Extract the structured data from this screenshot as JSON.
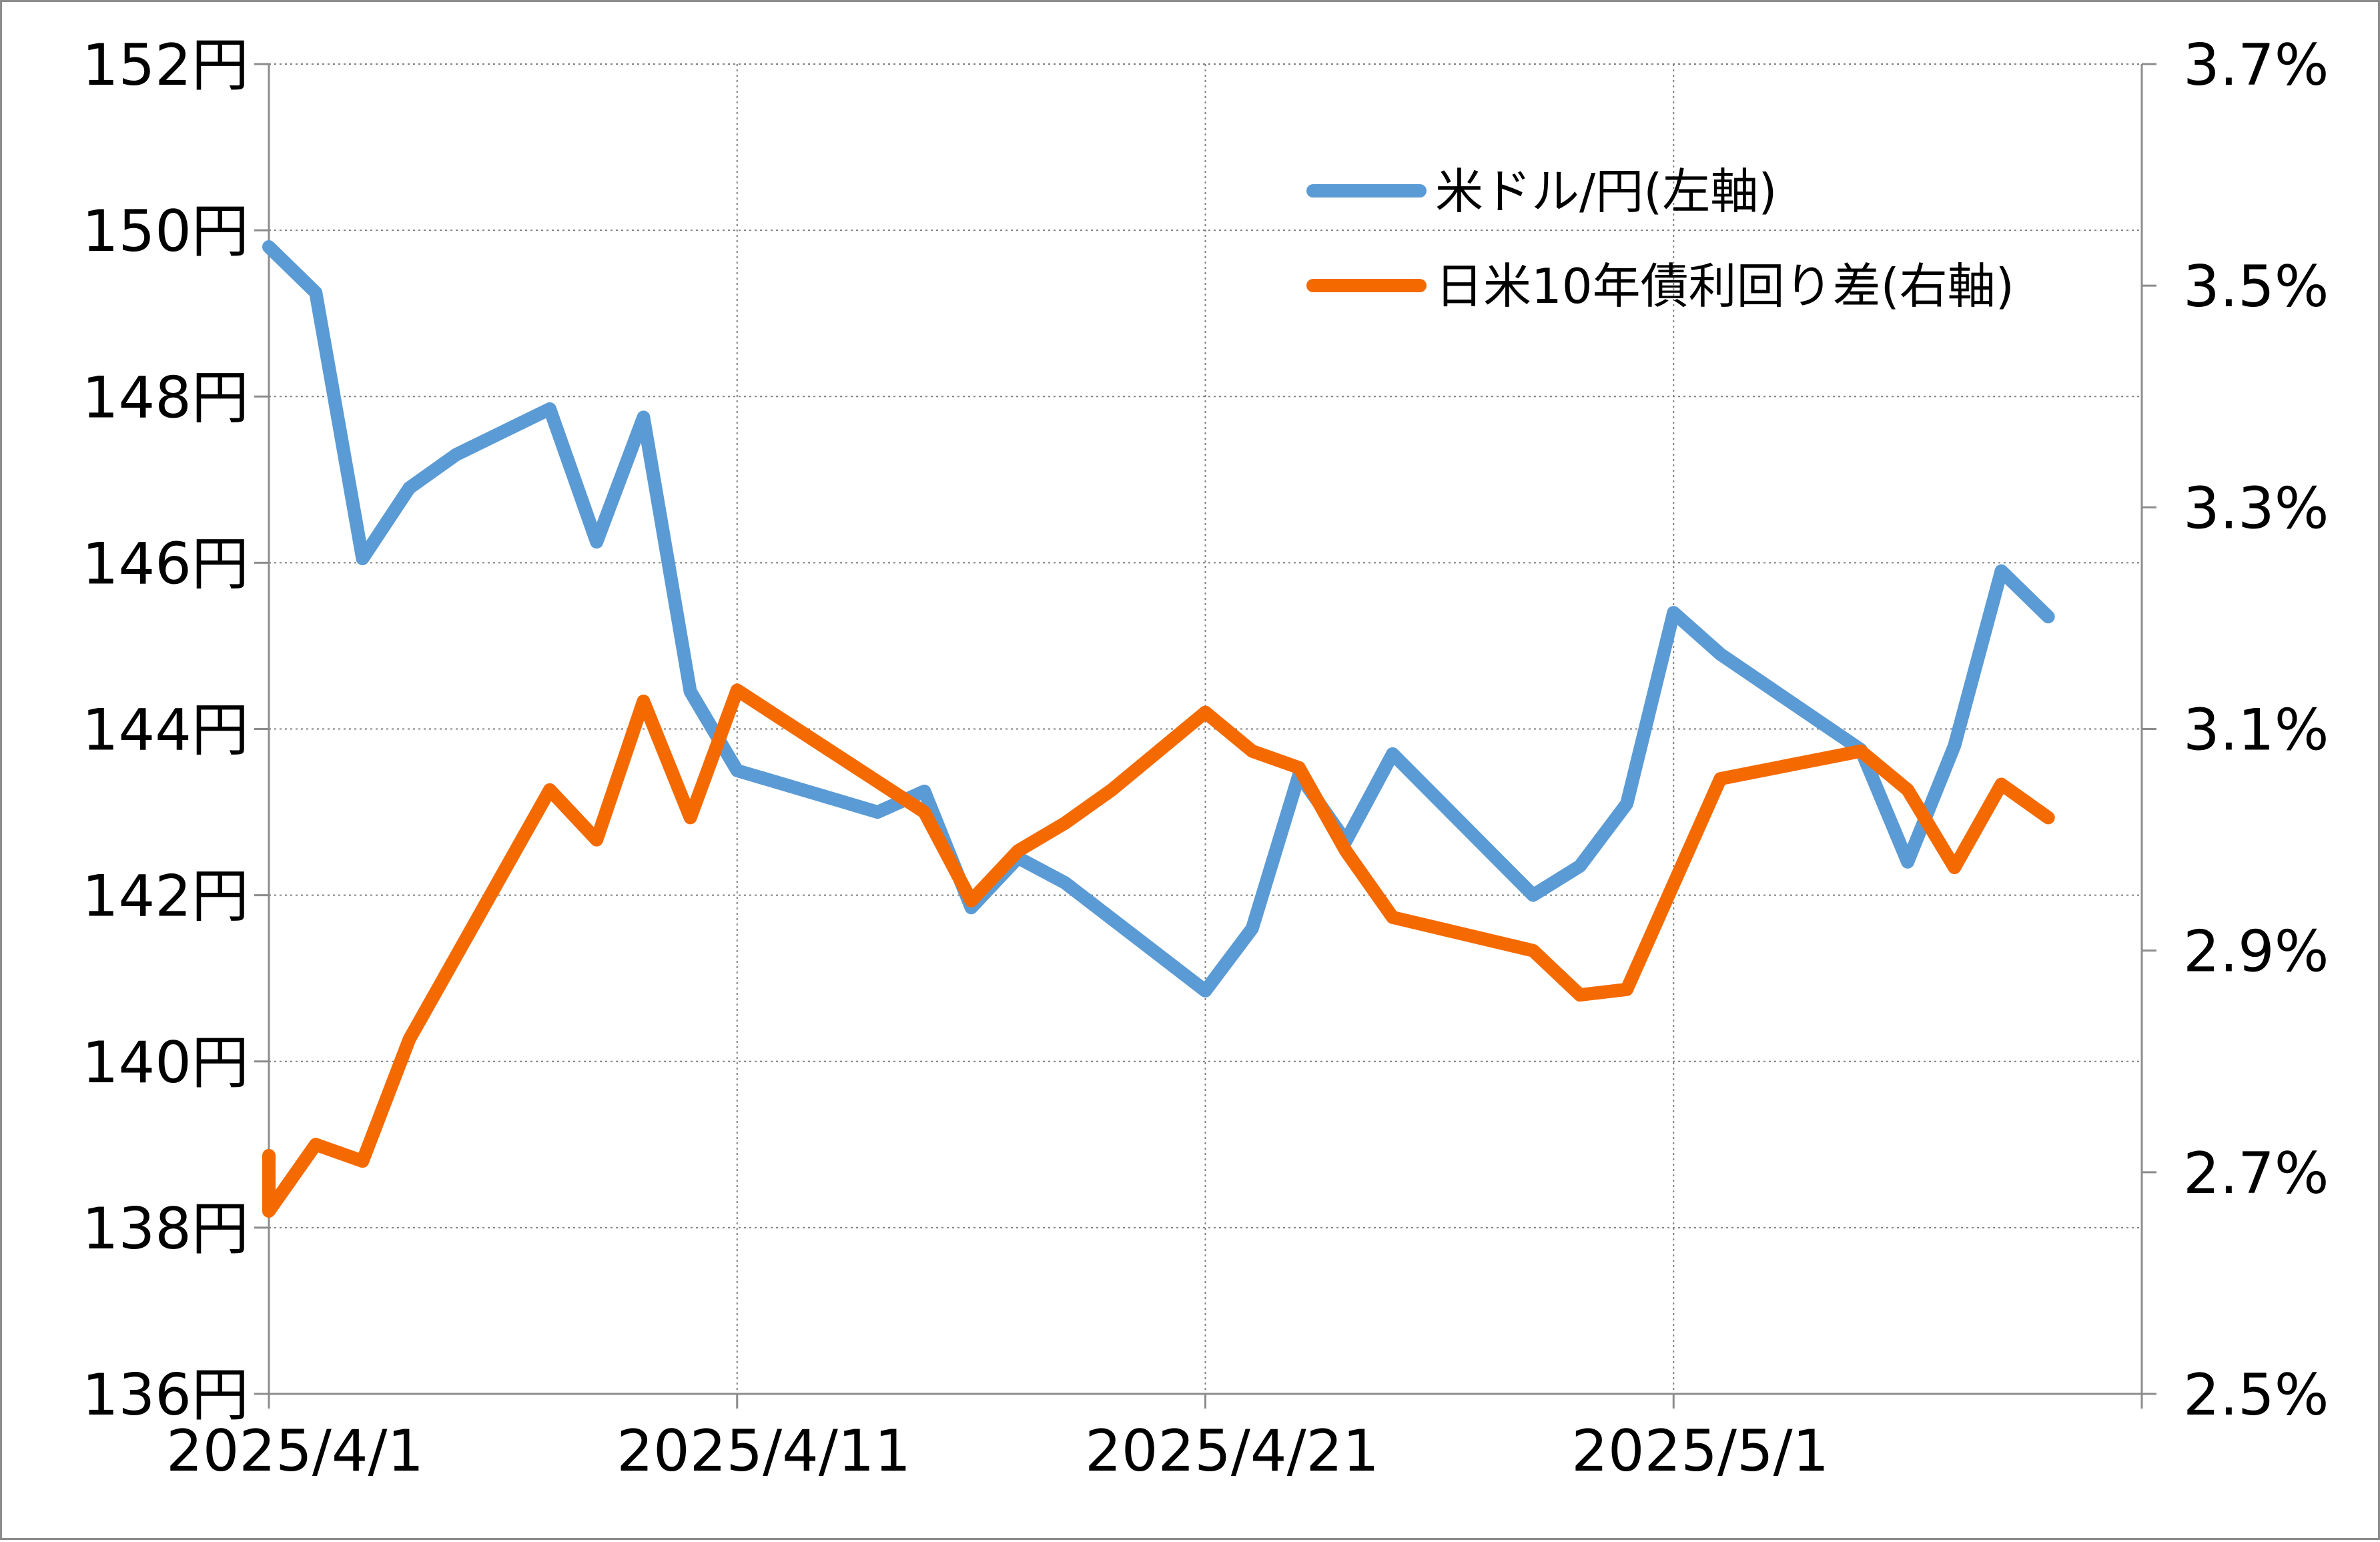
{
  "chart_data": {
    "type": "line",
    "x_ticks": [
      "2025/4/1",
      "2025/4/11",
      "2025/4/21",
      "2025/5/1"
    ],
    "y_left": {
      "ticks": [
        "152円",
        "150円",
        "148円",
        "146円",
        "144円",
        "142円",
        "140円",
        "138円",
        "136円"
      ],
      "range": [
        136,
        152
      ]
    },
    "y_right": {
      "ticks": [
        "3.7%",
        "3.5%",
        "3.3%",
        "3.1%",
        "2.9%",
        "2.7%",
        "2.5%"
      ],
      "range": [
        2.5,
        3.7
      ]
    },
    "x_range": [
      "2025/4/1",
      "2025/5/11"
    ],
    "grid": "dotted",
    "legend_position": "top-right",
    "series": [
      {
        "name": "米ドル/円(左軸)",
        "axis": "left",
        "color": "#5b9bd5",
        "x": [
          "2025/4/1",
          "2025/4/2",
          "2025/4/3",
          "2025/4/4",
          "2025/4/5",
          "2025/4/7",
          "2025/4/8",
          "2025/4/9",
          "2025/4/10",
          "2025/4/11",
          "2025/4/14",
          "2025/4/15",
          "2025/4/16",
          "2025/4/17",
          "2025/4/18",
          "2025/4/21",
          "2025/4/22",
          "2025/4/23",
          "2025/4/24",
          "2025/4/25",
          "2025/4/28",
          "2025/4/29",
          "2025/4/30",
          "2025/5/1",
          "2025/5/2",
          "2025/5/5",
          "2025/5/6",
          "2025/5/7",
          "2025/5/8",
          "2025/5/9"
        ],
        "values": [
          149.8,
          149.25,
          146.05,
          146.9,
          147.3,
          147.85,
          146.25,
          147.75,
          144.45,
          143.5,
          143.0,
          143.25,
          141.85,
          142.45,
          142.15,
          140.85,
          141.6,
          143.45,
          142.65,
          143.7,
          142.0,
          142.35,
          143.1,
          145.4,
          144.9,
          143.75,
          142.4,
          143.8,
          145.9,
          145.35
        ]
      },
      {
        "name": "日米10年債利回り差(右軸)",
        "axis": "right",
        "color": "#f56a00",
        "x": [
          "2025/4/1",
          "2025/4/1",
          "2025/4/2",
          "2025/4/3",
          "2025/4/4",
          "2025/4/7",
          "2025/4/8",
          "2025/4/9",
          "2025/4/10",
          "2025/4/11",
          "2025/4/15",
          "2025/4/16",
          "2025/4/17",
          "2025/4/18",
          "2025/4/19",
          "2025/4/21",
          "2025/4/22",
          "2025/4/23",
          "2025/4/24",
          "2025/4/25",
          "2025/4/28",
          "2025/4/29",
          "2025/4/30",
          "2025/5/2",
          "2025/5/5",
          "2025/5/6",
          "2025/5/7",
          "2025/5/8",
          "2025/5/9"
        ],
        "values": [
          2.715,
          2.665,
          2.725,
          2.71,
          2.82,
          3.045,
          3.0,
          3.125,
          3.02,
          3.135,
          3.025,
          2.945,
          2.99,
          3.015,
          3.045,
          3.115,
          3.08,
          3.065,
          2.99,
          2.93,
          2.9,
          2.86,
          2.865,
          3.055,
          3.08,
          3.045,
          2.975,
          3.05,
          3.02
        ]
      }
    ]
  }
}
